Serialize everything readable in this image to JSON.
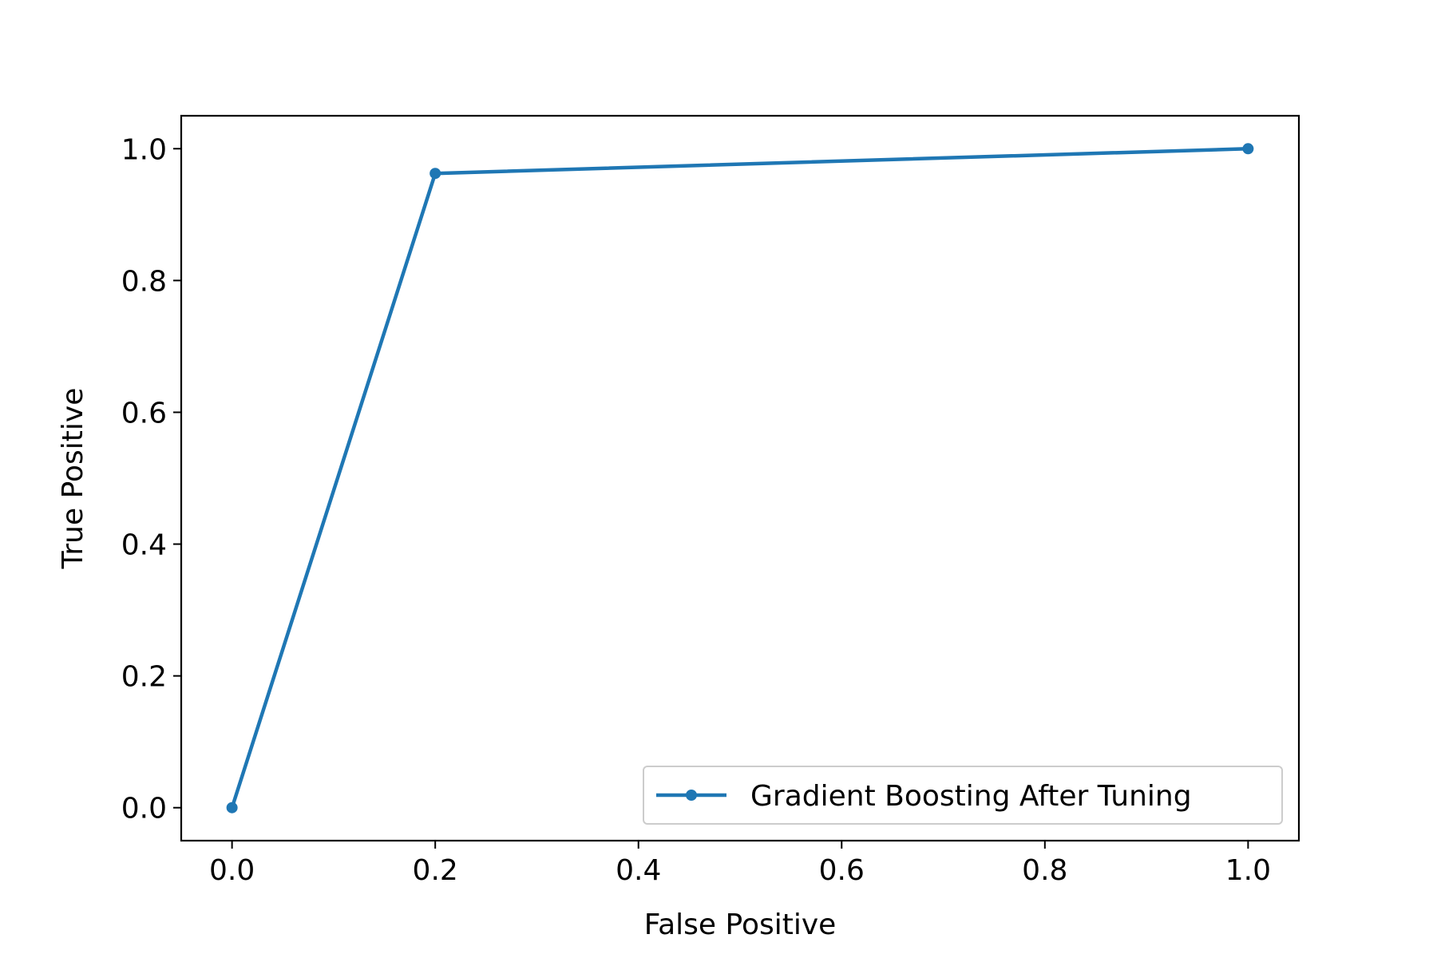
{
  "chart_data": {
    "type": "line",
    "title": "",
    "xlabel": "False Positive",
    "ylabel": "True Positive",
    "xlim": [
      -0.05,
      1.05
    ],
    "ylim": [
      -0.05,
      1.05
    ],
    "xticks": [
      "0.0",
      "0.2",
      "0.4",
      "0.6",
      "0.8",
      "1.0"
    ],
    "yticks": [
      "0.0",
      "0.2",
      "0.4",
      "0.6",
      "0.8",
      "1.0"
    ],
    "grid": false,
    "legend_position": "lower-right",
    "series": [
      {
        "name": "Gradient Boosting After Tuning",
        "color": "#1f77b4",
        "marker": "circle",
        "x": [
          0.0,
          0.2,
          1.0
        ],
        "y": [
          0.0,
          0.9625,
          1.0
        ]
      }
    ]
  }
}
